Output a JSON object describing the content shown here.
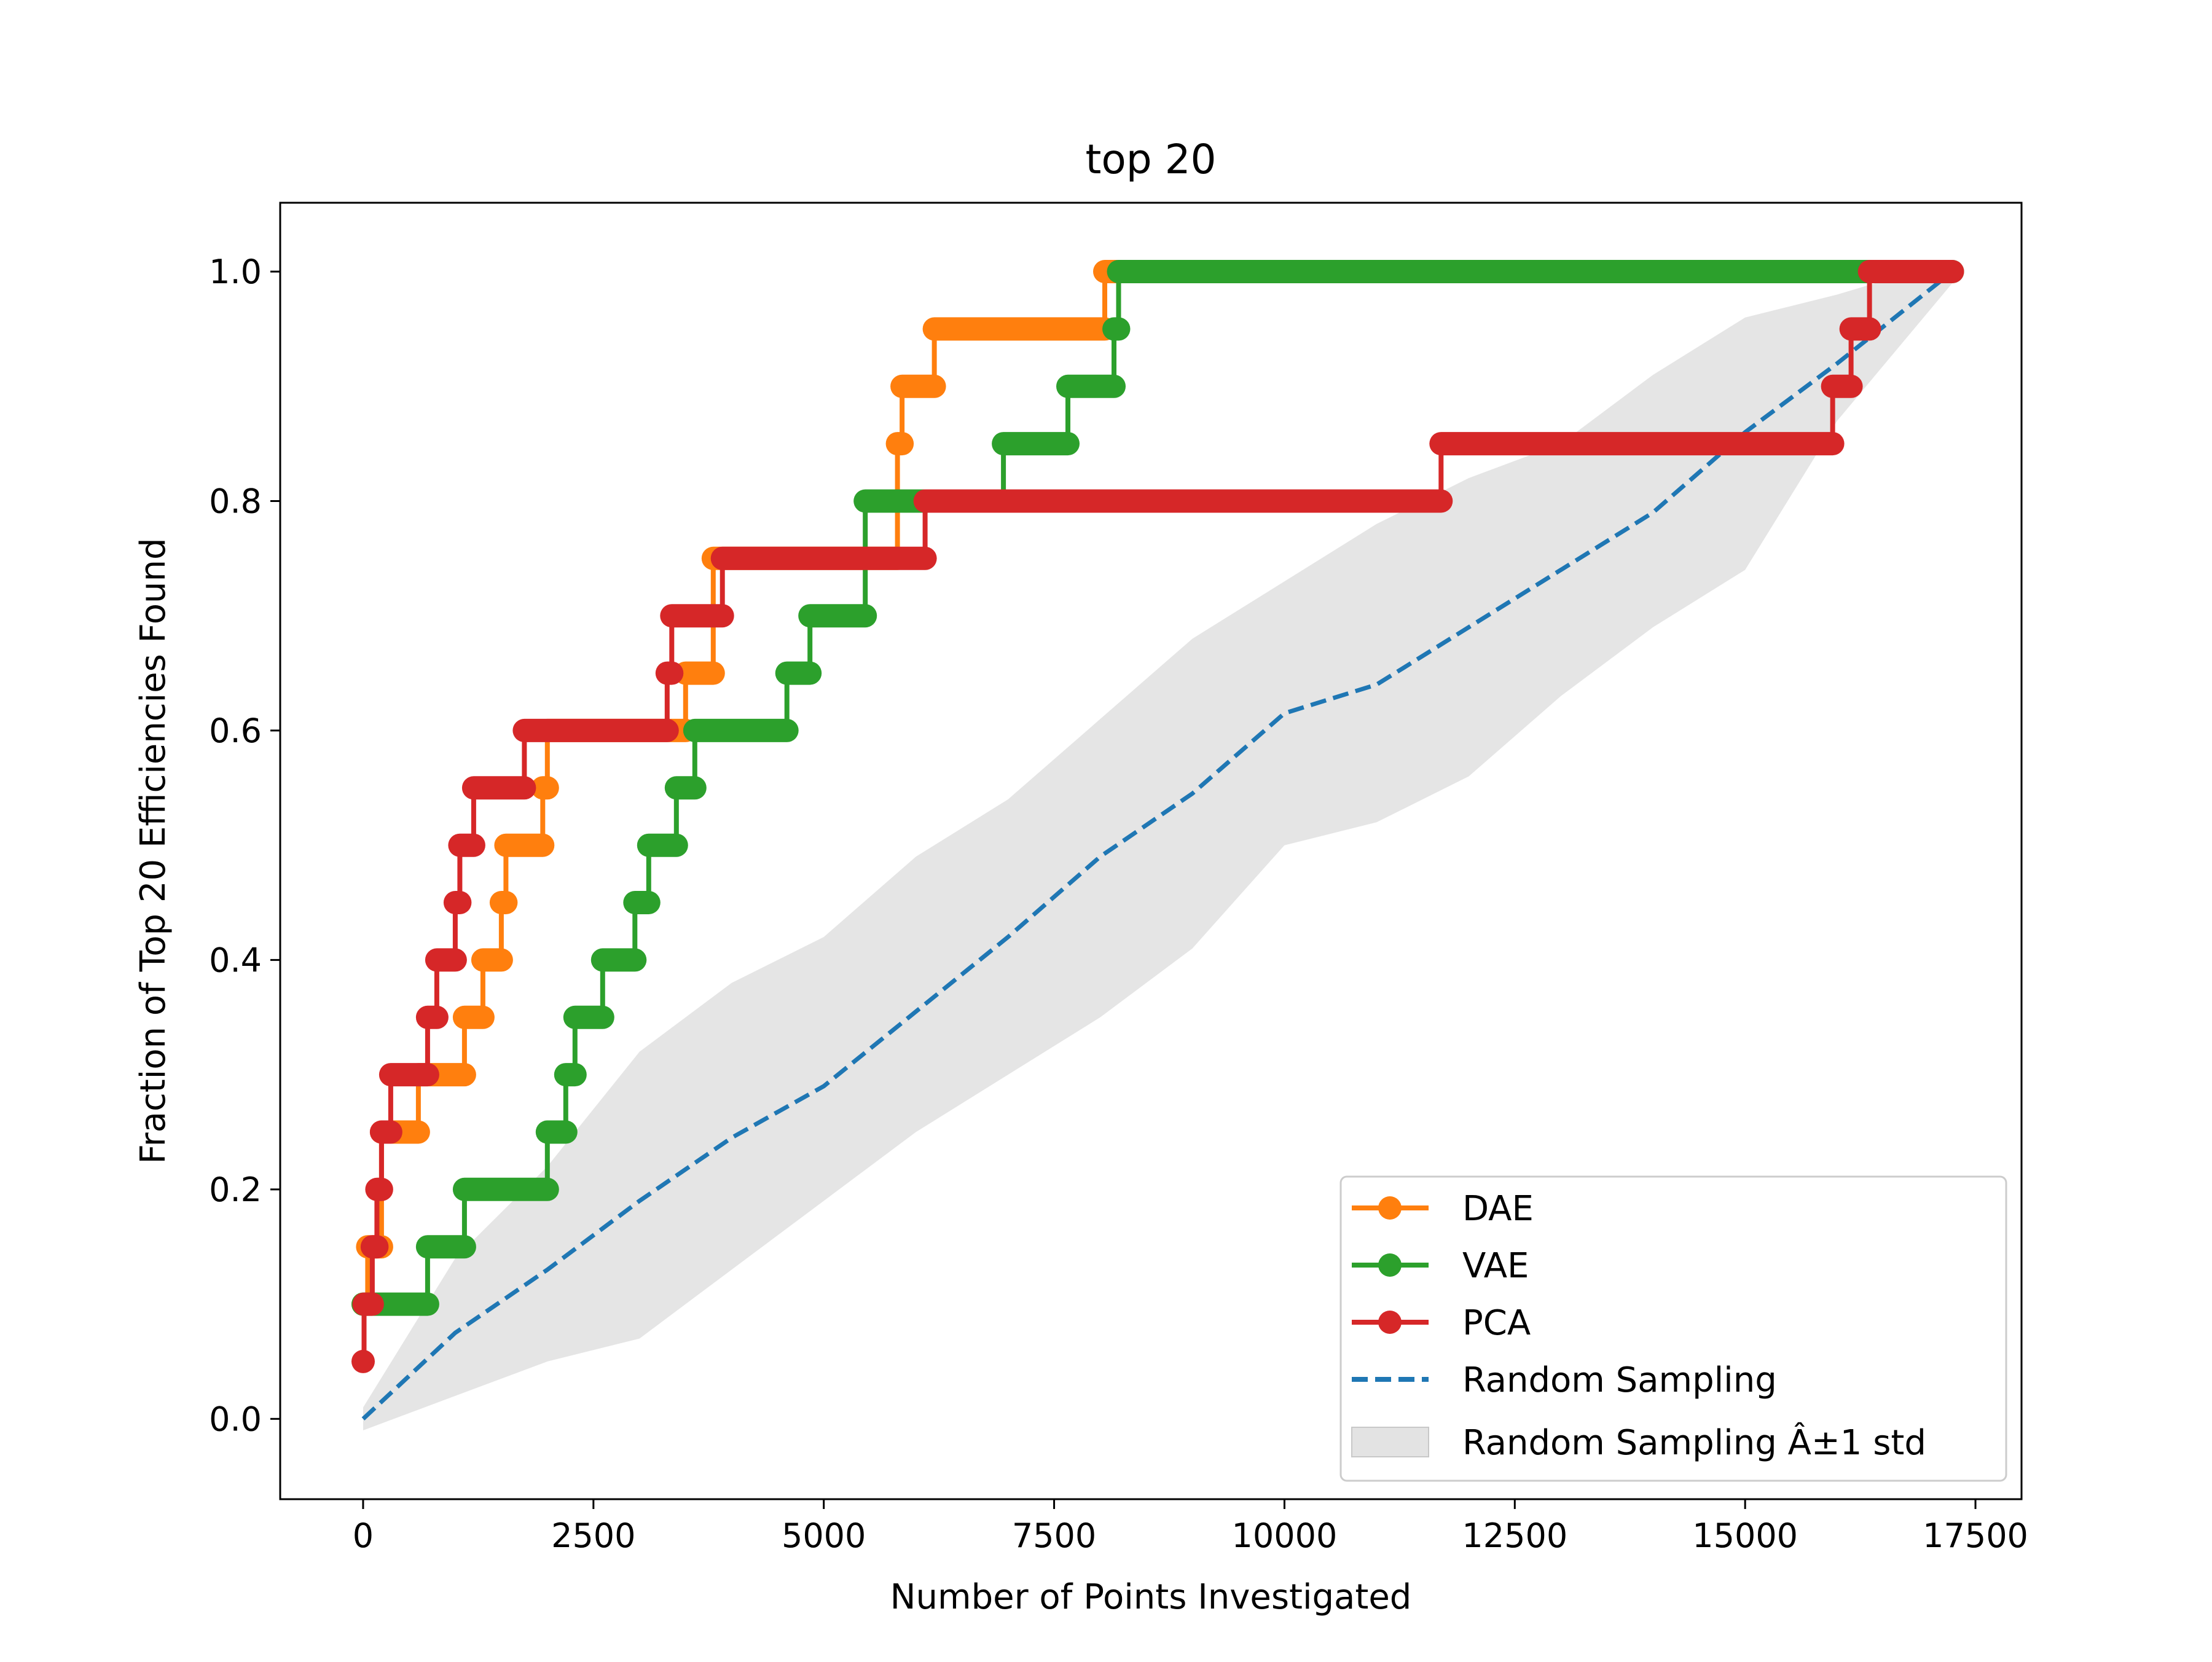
{
  "chart_data": {
    "type": "line",
    "title": "top 20",
    "xlabel": "Number of Points Investigated",
    "ylabel": "Fraction of Top 20 Efficiencies Found",
    "xlim": [
      -900,
      18000
    ],
    "ylim": [
      -0.07,
      1.06
    ],
    "x_ticks": [
      0,
      2500,
      5000,
      7500,
      10000,
      12500,
      15000,
      17500
    ],
    "x_tick_labels": [
      "0",
      "2500",
      "5000",
      "7500",
      "10000",
      "12500",
      "15000",
      "17500"
    ],
    "y_ticks": [
      0.0,
      0.2,
      0.4,
      0.6,
      0.8,
      1.0
    ],
    "y_tick_labels": [
      "0.0",
      "0.2",
      "0.4",
      "0.6",
      "0.8",
      "1.0"
    ],
    "grid": false,
    "legend_position": "bottom-right",
    "legend": [
      {
        "label": "DAE",
        "kind": "line-marker",
        "color": "#ff7f0e"
      },
      {
        "label": "VAE",
        "kind": "line-marker",
        "color": "#2ca02c"
      },
      {
        "label": "PCA",
        "kind": "line-marker",
        "color": "#d62728"
      },
      {
        "label": "Random Sampling",
        "kind": "dashed",
        "color": "#1f77b4"
      },
      {
        "label": "Random Sampling Â±1 std",
        "kind": "patch",
        "color": "#d9d9d9"
      }
    ],
    "series": [
      {
        "name": "DAE",
        "color": "#ff7f0e",
        "steps": [
          {
            "x": 0,
            "y": 0.1
          },
          {
            "x": 50,
            "y": 0.15
          },
          {
            "x": 200,
            "y": 0.25
          },
          {
            "x": 600,
            "y": 0.3
          },
          {
            "x": 1100,
            "y": 0.35
          },
          {
            "x": 1300,
            "y": 0.4
          },
          {
            "x": 1500,
            "y": 0.45
          },
          {
            "x": 1550,
            "y": 0.5
          },
          {
            "x": 1950,
            "y": 0.55
          },
          {
            "x": 2000,
            "y": 0.6
          },
          {
            "x": 3500,
            "y": 0.65
          },
          {
            "x": 3800,
            "y": 0.75
          },
          {
            "x": 5800,
            "y": 0.85
          },
          {
            "x": 5850,
            "y": 0.9
          },
          {
            "x": 6200,
            "y": 0.95
          },
          {
            "x": 8050,
            "y": 1.0
          }
        ],
        "end_x": 17200
      },
      {
        "name": "VAE",
        "color": "#2ca02c",
        "steps": [
          {
            "x": 0,
            "y": 0.1
          },
          {
            "x": 700,
            "y": 0.15
          },
          {
            "x": 1100,
            "y": 0.2
          },
          {
            "x": 2000,
            "y": 0.25
          },
          {
            "x": 2200,
            "y": 0.3
          },
          {
            "x": 2300,
            "y": 0.35
          },
          {
            "x": 2600,
            "y": 0.4
          },
          {
            "x": 2950,
            "y": 0.45
          },
          {
            "x": 3100,
            "y": 0.5
          },
          {
            "x": 3400,
            "y": 0.55
          },
          {
            "x": 3600,
            "y": 0.6
          },
          {
            "x": 4600,
            "y": 0.65
          },
          {
            "x": 4850,
            "y": 0.7
          },
          {
            "x": 5450,
            "y": 0.8
          },
          {
            "x": 6950,
            "y": 0.85
          },
          {
            "x": 7650,
            "y": 0.9
          },
          {
            "x": 8150,
            "y": 0.95
          },
          {
            "x": 8200,
            "y": 1.0
          }
        ],
        "end_x": 17250
      },
      {
        "name": "PCA",
        "color": "#d62728",
        "steps": [
          {
            "x": 0,
            "y": 0.05
          },
          {
            "x": 10,
            "y": 0.1
          },
          {
            "x": 100,
            "y": 0.15
          },
          {
            "x": 150,
            "y": 0.2
          },
          {
            "x": 200,
            "y": 0.25
          },
          {
            "x": 300,
            "y": 0.3
          },
          {
            "x": 700,
            "y": 0.35
          },
          {
            "x": 800,
            "y": 0.4
          },
          {
            "x": 1000,
            "y": 0.45
          },
          {
            "x": 1050,
            "y": 0.5
          },
          {
            "x": 1200,
            "y": 0.55
          },
          {
            "x": 1750,
            "y": 0.6
          },
          {
            "x": 3300,
            "y": 0.65
          },
          {
            "x": 3350,
            "y": 0.7
          },
          {
            "x": 3900,
            "y": 0.75
          },
          {
            "x": 6100,
            "y": 0.8
          },
          {
            "x": 11700,
            "y": 0.85
          },
          {
            "x": 15950,
            "y": 0.9
          },
          {
            "x": 16150,
            "y": 0.95
          },
          {
            "x": 16350,
            "y": 1.0
          }
        ],
        "end_x": 17250
      }
    ],
    "random_sampling": {
      "name": "Random Sampling",
      "color": "#1f77b4",
      "x": [
        0,
        1000,
        2000,
        3000,
        4000,
        5000,
        6000,
        7000,
        8000,
        9000,
        10000,
        11000,
        12000,
        13000,
        14000,
        15000,
        16000,
        17250
      ],
      "y": [
        0.0,
        0.075,
        0.13,
        0.19,
        0.245,
        0.29,
        0.355,
        0.42,
        0.49,
        0.545,
        0.615,
        0.64,
        0.69,
        0.74,
        0.79,
        0.86,
        0.92,
        1.0
      ],
      "std_lower": [
        -0.01,
        0.02,
        0.05,
        0.07,
        0.13,
        0.19,
        0.25,
        0.3,
        0.35,
        0.41,
        0.5,
        0.52,
        0.56,
        0.63,
        0.69,
        0.74,
        0.87,
        0.99
      ],
      "std_upper": [
        0.01,
        0.14,
        0.22,
        0.32,
        0.38,
        0.42,
        0.49,
        0.54,
        0.61,
        0.68,
        0.73,
        0.78,
        0.82,
        0.85,
        0.91,
        0.96,
        0.98,
        1.01
      ]
    }
  }
}
